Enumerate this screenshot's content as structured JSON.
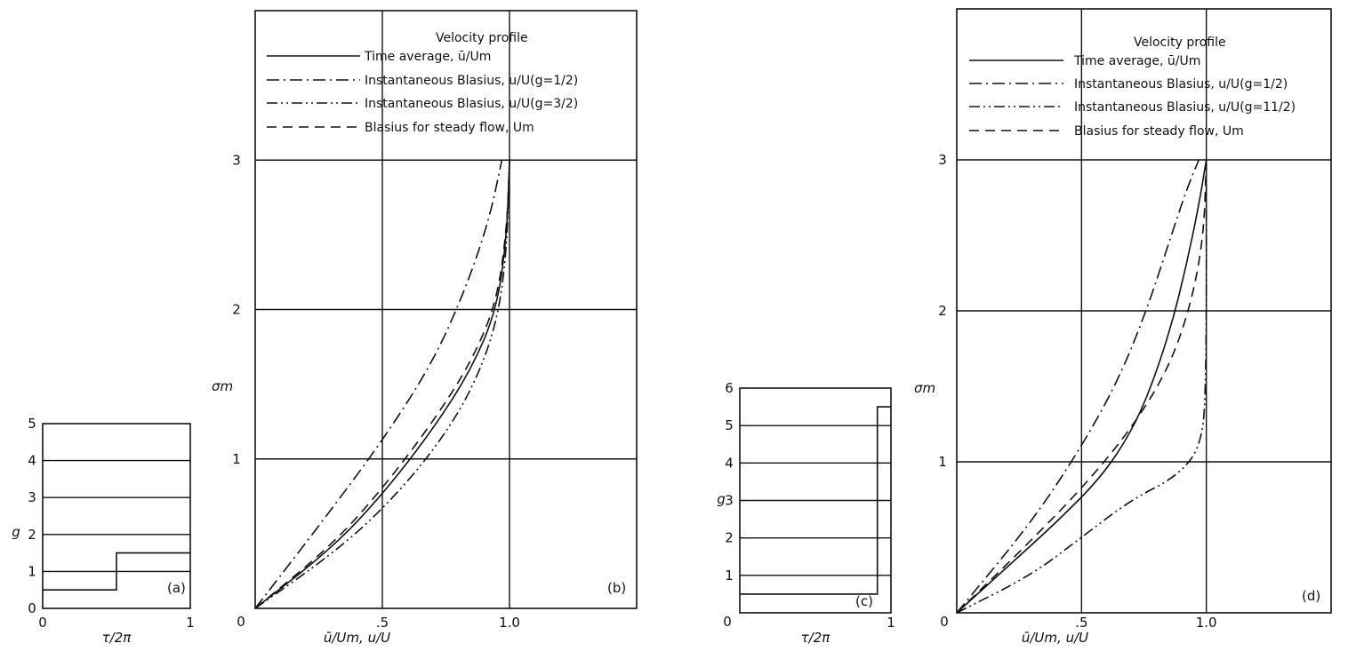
{
  "chart_data": [
    {
      "panel": "a",
      "type": "line",
      "xlabel": "τ/2π",
      "ylabel": "g",
      "xlim": [
        0,
        1
      ],
      "ylim": [
        0,
        5
      ],
      "xticks": [
        "0",
        "1"
      ],
      "yticks": [
        "0",
        "1",
        "2",
        "3",
        "4",
        "5"
      ],
      "panel_label": "(a)",
      "grid": true,
      "series": [
        {
          "x": [
            0,
            0.5,
            0.5,
            1
          ],
          "y": [
            0.5,
            0.5,
            1.5,
            1.5
          ]
        }
      ]
    },
    {
      "panel": "b",
      "type": "line",
      "xlabel": "ū/Um, u/U",
      "ylabel": "σm",
      "xlim": [
        0,
        1.5
      ],
      "ylim": [
        0,
        4
      ],
      "xticks": [
        "0",
        ".5",
        "1.0"
      ],
      "yticks": [
        "1",
        "2",
        "3"
      ],
      "panel_label": "(b)",
      "grid": true,
      "legend": {
        "title": "Velocity profile",
        "entries": [
          {
            "style": "solid",
            "text": "Time average, ū/Um"
          },
          {
            "style": "dash-dot",
            "text": "Instantaneous Blasius, u/U(g=1/2)"
          },
          {
            "style": "dash-dot-dot",
            "text": "Instantaneous Blasius, u/U(g=3/2)"
          },
          {
            "style": "dashed",
            "text": "Blasius for steady flow, Um"
          }
        ]
      },
      "series": [
        {
          "style": "solid",
          "points": [
            [
              0,
              0
            ],
            [
              0.3,
              0.4
            ],
            [
              0.5,
              0.76
            ],
            [
              0.7,
              1.2
            ],
            [
              0.85,
              1.6
            ],
            [
              0.95,
              2.0
            ],
            [
              0.99,
              2.5
            ],
            [
              1.0,
              3.0
            ]
          ]
        },
        {
          "style": "dash-dot",
          "points": [
            [
              0,
              0
            ],
            [
              0.25,
              0.55
            ],
            [
              0.5,
              1.12
            ],
            [
              0.7,
              1.65
            ],
            [
              0.83,
              2.15
            ],
            [
              0.92,
              2.6
            ],
            [
              0.97,
              3.0
            ]
          ]
        },
        {
          "style": "dash-dot-dot",
          "points": [
            [
              0,
              0
            ],
            [
              0.3,
              0.36
            ],
            [
              0.5,
              0.66
            ],
            [
              0.7,
              1.05
            ],
            [
              0.85,
              1.45
            ],
            [
              0.95,
              1.9
            ],
            [
              0.99,
              2.4
            ],
            [
              1.0,
              3.0
            ]
          ]
        },
        {
          "style": "dashed",
          "points": [
            [
              0,
              0
            ],
            [
              0.3,
              0.42
            ],
            [
              0.5,
              0.8
            ],
            [
              0.7,
              1.25
            ],
            [
              0.85,
              1.65
            ],
            [
              0.95,
              2.05
            ],
            [
              0.99,
              2.55
            ],
            [
              1.0,
              3.0
            ]
          ]
        }
      ]
    },
    {
      "panel": "c",
      "type": "line",
      "xlabel": "τ/2π",
      "ylabel": "g",
      "xlim": [
        0,
        1
      ],
      "ylim": [
        0,
        6
      ],
      "xticks": [
        "0",
        "1"
      ],
      "yticks": [
        "1",
        "2",
        "3",
        "4",
        "5",
        "6"
      ],
      "panel_label": "(c)",
      "grid": true,
      "series": [
        {
          "x": [
            0,
            0.91,
            0.91,
            1
          ],
          "y": [
            0.5,
            0.5,
            5.5,
            5.5
          ]
        }
      ]
    },
    {
      "panel": "d",
      "type": "line",
      "xlabel": "ū/Um, u/U",
      "ylabel": "σm",
      "xlim": [
        0,
        1.5
      ],
      "ylim": [
        0,
        4
      ],
      "xticks": [
        "0",
        ".5",
        "1.0"
      ],
      "yticks": [
        "1",
        "2",
        "3"
      ],
      "panel_label": "(d)",
      "grid": true,
      "legend": {
        "title": "Velocity profile",
        "entries": [
          {
            "style": "solid",
            "text": "Time average, ū/Um"
          },
          {
            "style": "dash-dot",
            "text": "Instantaneous Blasius, u/U(g=1/2)"
          },
          {
            "style": "dash-dot-dot",
            "text": "Instantaneous Blasius, u/U(g=11/2)"
          },
          {
            "style": "dashed",
            "text": "Blasius for steady flow, Um"
          }
        ]
      },
      "series": [
        {
          "style": "solid",
          "points": [
            [
              0,
              0
            ],
            [
              0.2,
              0.3
            ],
            [
              0.4,
              0.6
            ],
            [
              0.58,
              0.9
            ],
            [
              0.7,
              1.2
            ],
            [
              0.78,
              1.5
            ],
            [
              0.86,
              1.9
            ],
            [
              0.92,
              2.3
            ],
            [
              0.97,
              2.7
            ],
            [
              1.0,
              3.0
            ]
          ]
        },
        {
          "style": "dash-dot",
          "points": [
            [
              0,
              0
            ],
            [
              0.3,
              0.6
            ],
            [
              0.5,
              1.1
            ],
            [
              0.65,
              1.55
            ],
            [
              0.76,
              2.0
            ],
            [
              0.85,
              2.45
            ],
            [
              0.92,
              2.8
            ],
            [
              0.97,
              3.0
            ]
          ]
        },
        {
          "style": "dash-dot-dot",
          "points": [
            [
              0,
              0
            ],
            [
              0.3,
              0.25
            ],
            [
              0.5,
              0.5
            ],
            [
              0.7,
              0.75
            ],
            [
              0.88,
              0.9
            ],
            [
              0.98,
              1.1
            ],
            [
              1.0,
              1.5
            ],
            [
              1.0,
              3.0
            ]
          ]
        },
        {
          "style": "dashed",
          "points": [
            [
              0,
              0
            ],
            [
              0.25,
              0.4
            ],
            [
              0.5,
              0.82
            ],
            [
              0.7,
              1.22
            ],
            [
              0.85,
              1.62
            ],
            [
              0.94,
              2.05
            ],
            [
              0.99,
              2.5
            ],
            [
              1.0,
              3.0
            ]
          ]
        }
      ]
    }
  ]
}
